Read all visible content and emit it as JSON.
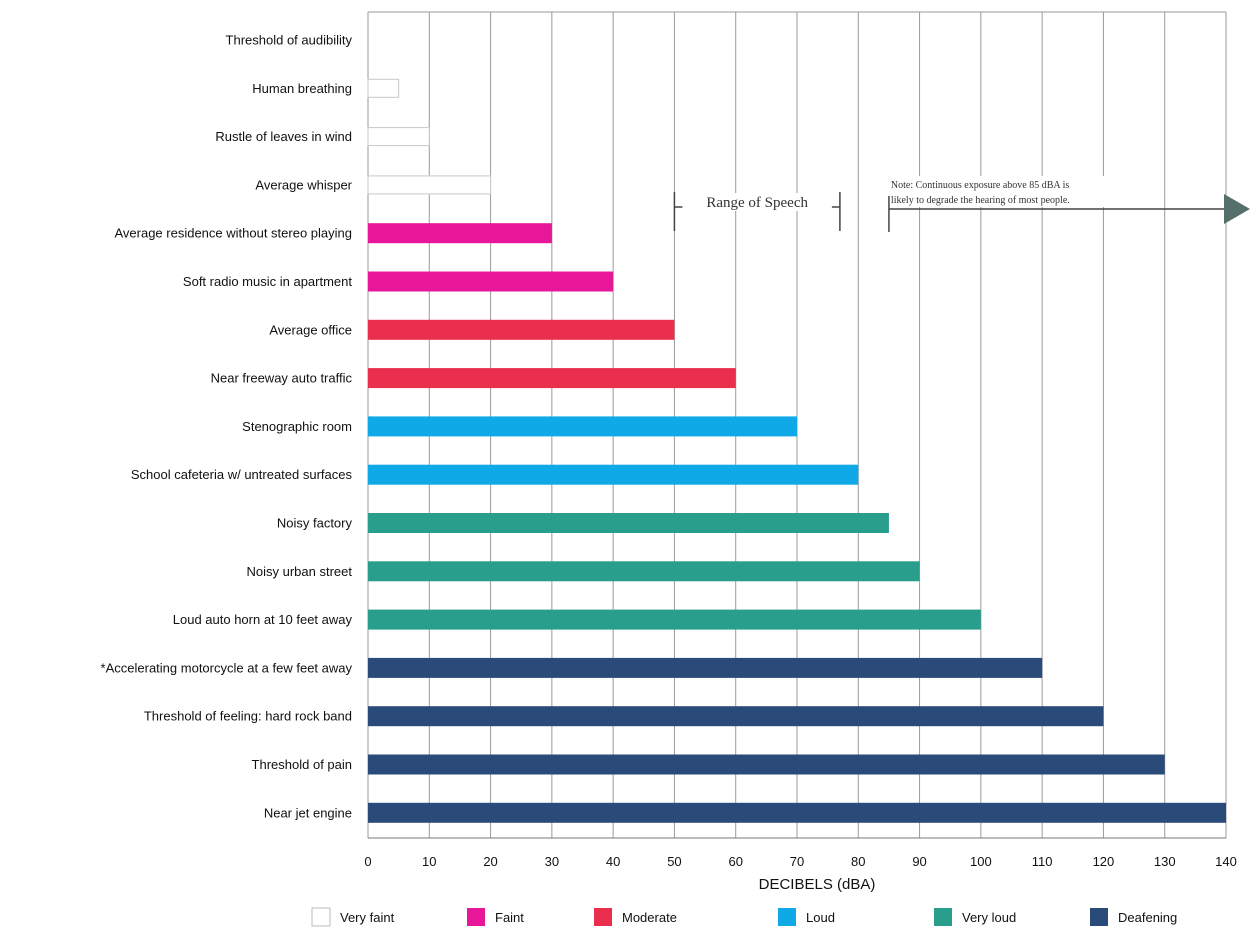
{
  "chart_data": {
    "type": "bar",
    "orientation": "horizontal",
    "title": "",
    "xlabel": "DECIBELS (dBA)",
    "ylabel": "",
    "xlim": [
      0,
      140
    ],
    "xticks": [
      0,
      10,
      20,
      30,
      40,
      50,
      60,
      70,
      80,
      90,
      100,
      110,
      120,
      130,
      140
    ],
    "grid": true,
    "legend_position": "bottom",
    "categories": [
      "Threshold of audibility",
      "Human breathing",
      "Rustle of leaves in wind",
      "Average whisper",
      "Average residence without stereo playing",
      "Soft radio music in apartment",
      "Average office",
      "Near freeway auto traffic",
      "Stenographic room",
      "School cafeteria w/ untreated surfaces",
      "Noisy factory",
      "Noisy urban street",
      "Loud auto horn at 10 feet away",
      "*Accelerating motorcycle at a few feet away",
      "Threshold of feeling: hard rock band",
      "Threshold of pain",
      "Near jet engine"
    ],
    "values": [
      0,
      5,
      10,
      20,
      30,
      40,
      50,
      60,
      70,
      80,
      85,
      90,
      100,
      110,
      120,
      130,
      140
    ],
    "bar_classes": [
      "very_faint",
      "very_faint",
      "very_faint",
      "very_faint",
      "faint",
      "faint",
      "moderate",
      "moderate",
      "loud",
      "loud",
      "very_loud",
      "very_loud",
      "very_loud",
      "deafening",
      "deafening",
      "deafening",
      "deafening"
    ],
    "legend": [
      {
        "key": "very_faint",
        "label": "Very faint",
        "color": "#ffffff"
      },
      {
        "key": "faint",
        "label": "Faint",
        "color": "#e8179a"
      },
      {
        "key": "moderate",
        "label": "Moderate",
        "color": "#ea2e4e"
      },
      {
        "key": "loud",
        "label": "Loud",
        "color": "#10a9e8"
      },
      {
        "key": "very_loud",
        "label": "Very loud",
        "color": "#2a9e8c"
      },
      {
        "key": "deafening",
        "label": "Deafening",
        "color": "#2a4a7a"
      }
    ],
    "annotations": {
      "speech_range": {
        "label": "Range of Speech",
        "from": 50,
        "to": 77
      },
      "note": {
        "text_line1": "Note: Continuous exposure above 85 dBA is",
        "text_line2": "likely to degrade the hearing of most people.",
        "from": 85,
        "to": 140
      }
    }
  }
}
